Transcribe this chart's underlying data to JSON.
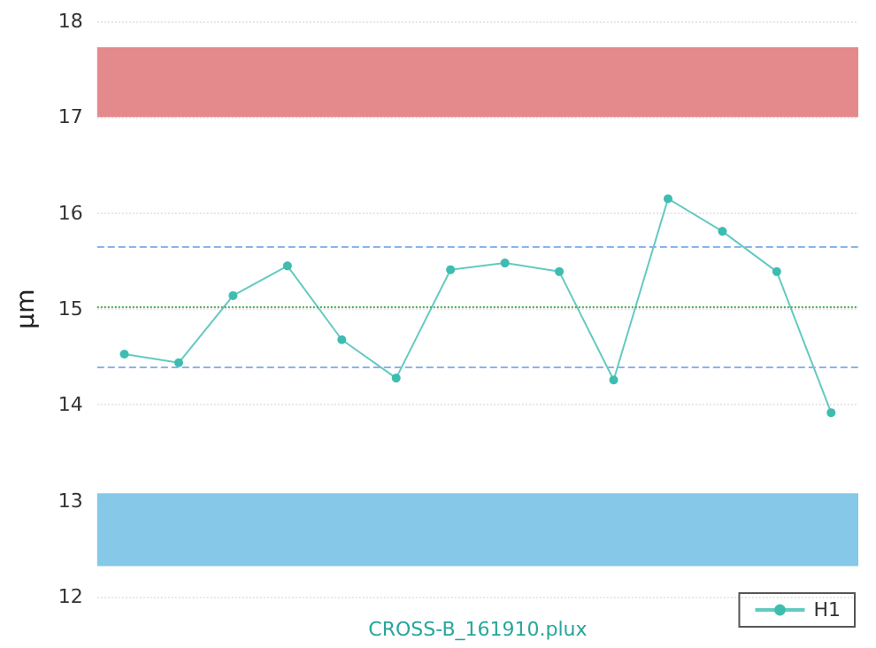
{
  "chart_data": {
    "type": "line",
    "xlabel": "CROSS-B_161910.plux",
    "ylabel": "μm",
    "categories": [
      null,
      null,
      null,
      null,
      null,
      null,
      null,
      null,
      null,
      null,
      null,
      null,
      null,
      null
    ],
    "series": [
      {
        "name": "H1",
        "color": "#3dbdb0",
        "values": [
          14.53,
          14.44,
          15.14,
          15.45,
          14.68,
          14.28,
          15.41,
          15.48,
          15.39,
          14.26,
          16.15,
          15.81,
          15.39,
          13.92
        ]
      }
    ],
    "ylim": [
      12,
      18
    ],
    "yticks": [
      12,
      13,
      14,
      15,
      16,
      17,
      18
    ],
    "grid": "y",
    "legend": "bottom right",
    "marker": "circle",
    "line_style": "solid",
    "ref_lines": [
      {
        "axis": "y",
        "value": 15.66,
        "color": "#8ab4e8",
        "line_style": "dashed"
      },
      {
        "axis": "y",
        "value": 15.02,
        "color": "#4caf50",
        "line_style": "dotted"
      },
      {
        "axis": "y",
        "value": 14.39,
        "color": "#8ab4e8",
        "line_style": "dashed"
      }
    ],
    "bands": [
      {
        "axis": "y",
        "from": 17.0,
        "to": 17.73,
        "color": "#e48a8c"
      },
      {
        "axis": "y",
        "from": 12.32,
        "to": 13.08,
        "color": "#85c8e8"
      }
    ]
  }
}
